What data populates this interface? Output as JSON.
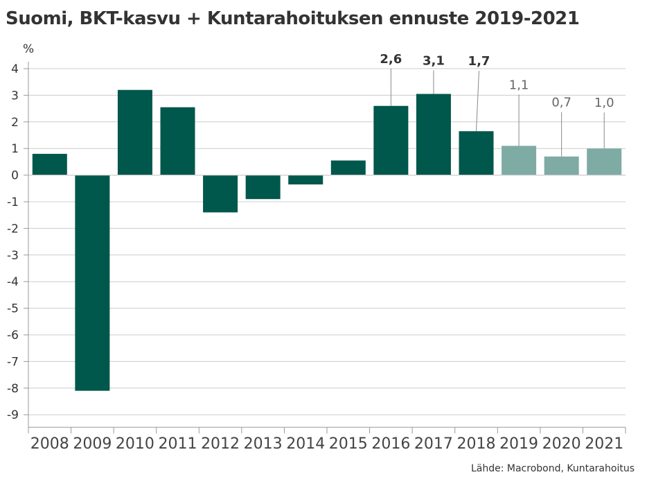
{
  "title": "Suomi, BKT-kasvu + Kuntarahoituksen ennuste 2019-2021",
  "source": "Lähde: Macrobond, Kuntarahoitus",
  "chart_data": {
    "type": "bar",
    "title": "Suomi, BKT-kasvu + Kuntarahoituksen ennuste 2019-2021",
    "ylabel": "%",
    "xlabel": "",
    "ylim": [
      -9,
      4
    ],
    "yticks": [
      4,
      3,
      2,
      1,
      0,
      -1,
      -2,
      -3,
      -4,
      -5,
      -6,
      -7,
      -8,
      -9
    ],
    "grid": true,
    "categories": [
      "2008",
      "2009",
      "2010",
      "2011",
      "2012",
      "2013",
      "2014",
      "2015",
      "2016",
      "2017",
      "2018",
      "2019",
      "2020",
      "2021"
    ],
    "values": [
      0.8,
      -8.1,
      3.2,
      2.55,
      -1.4,
      -0.9,
      -0.35,
      0.55,
      2.6,
      3.05,
      1.65,
      1.1,
      0.7,
      1.0
    ],
    "forecast": [
      false,
      false,
      false,
      false,
      false,
      false,
      false,
      false,
      false,
      false,
      false,
      true,
      true,
      true
    ],
    "data_labels": [
      {
        "category": "2016",
        "text": "2,6",
        "bold": true
      },
      {
        "category": "2017",
        "text": "3,1",
        "bold": true
      },
      {
        "category": "2018",
        "text": "1,7",
        "bold": true
      },
      {
        "category": "2019",
        "text": "1,1",
        "bold": false
      },
      {
        "category": "2020",
        "text": "0,7",
        "bold": false
      },
      {
        "category": "2021",
        "text": "1,0",
        "bold": false
      }
    ],
    "colors": {
      "actual": "#00574B",
      "forecast": "#7FABA5",
      "grid": "#CCCCCC",
      "axis": "#999999",
      "text": "#333333"
    }
  }
}
